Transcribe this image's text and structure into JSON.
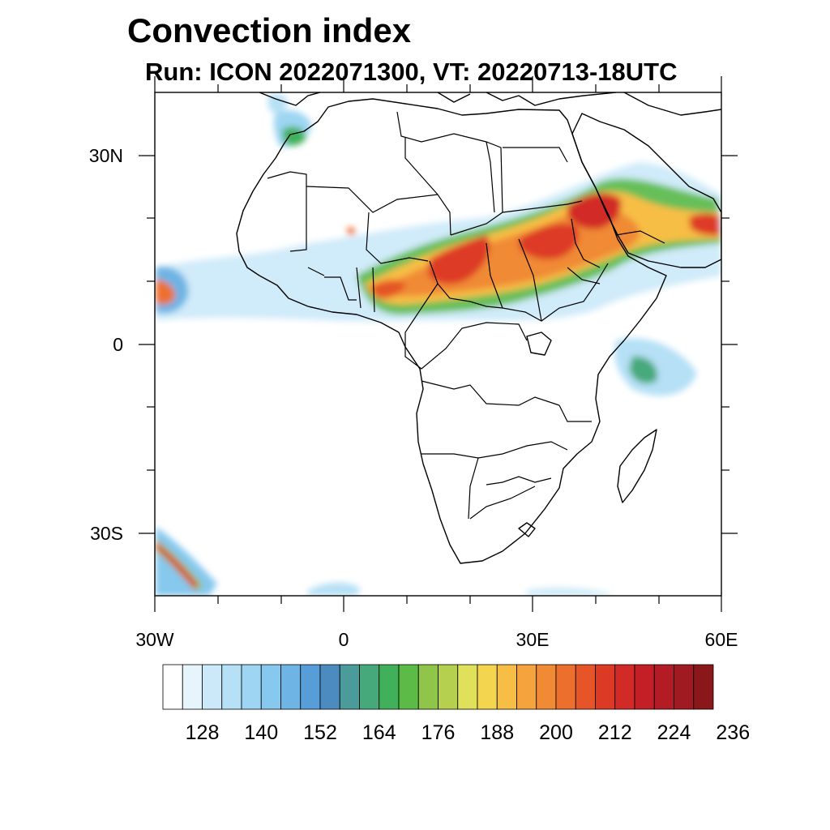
{
  "title": "Convection index",
  "subtitle": "Run: ICON 2022071300,  VT: 20220713-18UTC",
  "map": {
    "lon_range": [
      -30,
      60
    ],
    "lat_range": [
      -40,
      40
    ],
    "lat_ticks": [
      {
        "value": 30,
        "label": "30N"
      },
      {
        "value": 0,
        "label": "0"
      },
      {
        "value": -30,
        "label": "30S"
      }
    ],
    "lon_ticks": [
      {
        "value": -30,
        "label": "30W"
      },
      {
        "value": 0,
        "label": "0"
      },
      {
        "value": 30,
        "label": "30E"
      },
      {
        "value": 60,
        "label": "60E"
      }
    ],
    "field": "Convection index",
    "high_value_region": "Sahel band from West Africa to Arabia"
  },
  "colorbar": {
    "colors": [
      "#ffffff",
      "#e6f4fc",
      "#cbe9f8",
      "#b5e0f6",
      "#9dd5f2",
      "#86c8ee",
      "#6eb4e4",
      "#579ed8",
      "#4b8bbf",
      "#4a9b9a",
      "#46a97c",
      "#41b05a",
      "#5cba47",
      "#8fc549",
      "#b5d04e",
      "#dfe15a",
      "#f4d54f",
      "#f7be45",
      "#f5a33d",
      "#f08a35",
      "#ec6f2e",
      "#e55528",
      "#dd3a25",
      "#d22a27",
      "#c41f27",
      "#b31b25",
      "#a01a22",
      "#8a1719"
    ],
    "labels": [
      "128",
      "140",
      "152",
      "164",
      "176",
      "188",
      "200",
      "212",
      "224",
      "236"
    ]
  }
}
